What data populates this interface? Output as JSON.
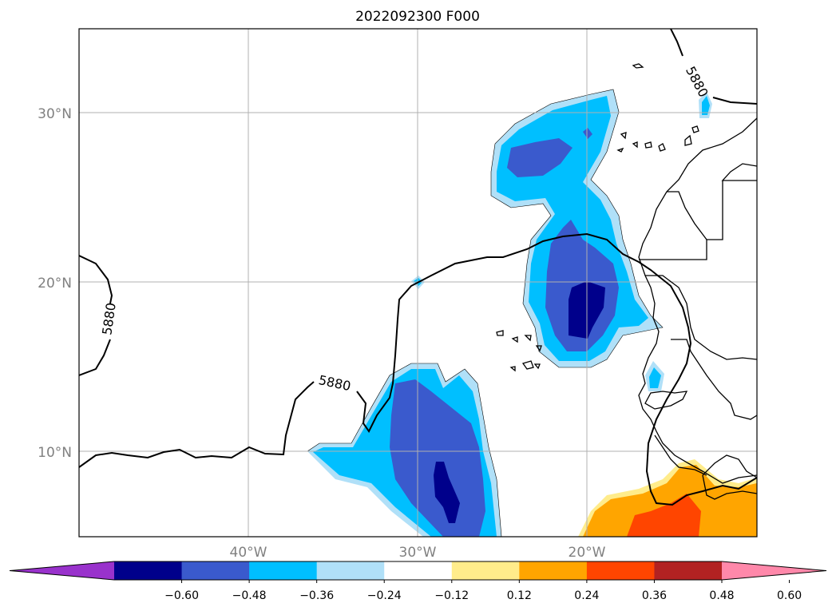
{
  "title": "2022092300 F000",
  "lat_labels": [
    "30°N",
    "20°N",
    "10°N"
  ],
  "lon_labels": [
    "40°W",
    "30°W",
    "20°W"
  ],
  "contour": {
    "level_label": "5880",
    "color": "#000000"
  },
  "colorbar": {
    "tick_labels": [
      "−0.60",
      "−0.48",
      "−0.36",
      "−0.24",
      "−0.12",
      "0.12",
      "0.24",
      "0.36",
      "0.48",
      "0.60"
    ],
    "colors": [
      "#9932cc",
      "#00008b",
      "#3a5acd",
      "#00bfff",
      "#b0e0f8",
      "#ffffff",
      "#ffec8b",
      "#ffa500",
      "#ff4500",
      "#b22222",
      "#ff88aa"
    ]
  },
  "gridline_color": "#b0b0b0"
}
